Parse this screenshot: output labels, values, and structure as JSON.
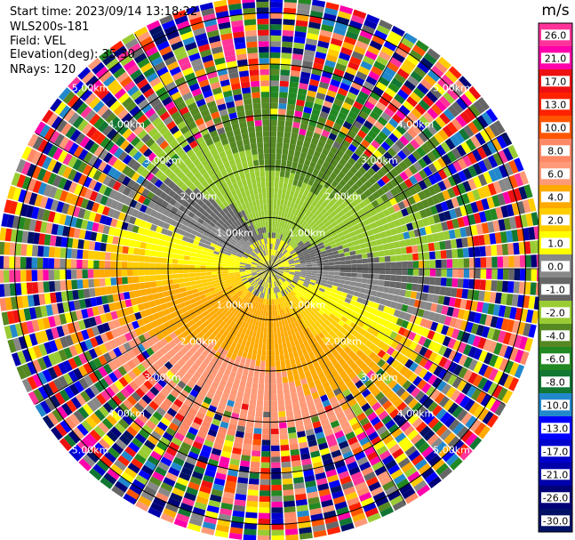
{
  "header": {
    "start_time": "Start time: 2023/09/14 13:18:22",
    "instrument": "WLS200s-181",
    "field": "Field: VEL",
    "elevation": "Elevation(deg): 35.30",
    "nrays": "NRays: 120"
  },
  "chart_data": {
    "type": "heatmap",
    "title": "",
    "projection": "polar-ppi",
    "field": "VEL",
    "units": "m/s",
    "n_rays": 120,
    "elevation_deg": 35.3,
    "range_rings_km": [
      1.0,
      2.0,
      3.0,
      4.0,
      5.0
    ],
    "ring_labels": [
      "1.00km",
      "2.00km",
      "3.00km",
      "4.00km",
      "5.00km"
    ],
    "max_range_km": 5.3,
    "colorbar": {
      "unit": "m/s",
      "levels": [
        26.0,
        21.0,
        17.0,
        13.0,
        10.0,
        8.0,
        6.0,
        4.0,
        2.0,
        1.0,
        0.0,
        -1.0,
        -2.0,
        -4.0,
        -6.0,
        -8.0,
        -10.0,
        -13.0,
        -17.0,
        -21.0,
        -26.0,
        -30.0
      ],
      "tick_labels": [
        "26.0",
        "21.0",
        "17.0",
        "13.0",
        "10.0",
        "8.0",
        "6.0",
        "4.0",
        "2.0",
        "1.0",
        "0.0",
        "-1.0",
        "-2.0",
        "-4.0",
        "-6.0",
        "-8.0",
        "-10.0",
        "-13.0",
        "-17.0",
        "-21.0",
        "-26.0",
        "-30.0"
      ],
      "colors": [
        "#ff3399",
        "#ff00aa",
        "#ee1111",
        "#ff2200",
        "#ff5500",
        "#ff8866",
        "#ff9977",
        "#ffaa00",
        "#ffcc00",
        "#ffff00",
        "#888888",
        "#666666",
        "#99cc33",
        "#558822",
        "#228822",
        "#117733",
        "#2288cc",
        "#0000ff",
        "#0000cc",
        "#0000aa",
        "#000077",
        "#001166"
      ]
    },
    "pattern": {
      "inner_near_zero": "gray",
      "approaching_sector": "green (negative, NE-N)",
      "receding_sector": "yellow/orange (positive, S-SW)",
      "outer_noise": "random colors beyond ~3 km"
    }
  }
}
